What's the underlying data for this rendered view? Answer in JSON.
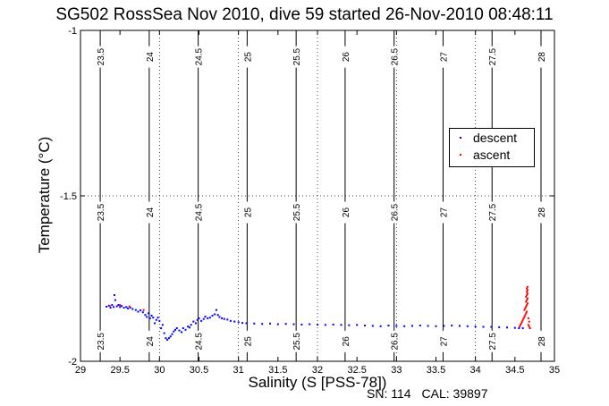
{
  "chart_data": {
    "type": "scatter",
    "title": "SG502 RossSea Nov 2010, dive 59 started 26-Nov-2010 08:48:11",
    "xlabel": "Salinity (S [PSS-78])",
    "ylabel": "Temperature (°C)",
    "xlim": [
      29,
      35
    ],
    "ylim": [
      -2,
      -1
    ],
    "xticks": [
      "29",
      "29.5",
      "30",
      "30.5",
      "31",
      "31.5",
      "32",
      "32.5",
      "33",
      "33.5",
      "34",
      "34.5",
      "35"
    ],
    "yticks": [
      "-1",
      "-1.5",
      "-2"
    ],
    "grid": "dotted",
    "legend_position": "upper-right",
    "density_contours": [
      {
        "sigma": 23.5,
        "label": "23.5",
        "x": 29.25
      },
      {
        "sigma": 24,
        "label": "24",
        "x": 29.87
      },
      {
        "sigma": 24.5,
        "label": "24.5",
        "x": 30.49
      },
      {
        "sigma": 25,
        "label": "25",
        "x": 31.11
      },
      {
        "sigma": 25.5,
        "label": "25.5",
        "x": 31.73
      },
      {
        "sigma": 26,
        "label": "26",
        "x": 32.35
      },
      {
        "sigma": 26.5,
        "label": "26.5",
        "x": 32.97
      },
      {
        "sigma": 27,
        "label": "27",
        "x": 33.59
      },
      {
        "sigma": 27.5,
        "label": "27.5",
        "x": 34.21
      },
      {
        "sigma": 28,
        "label": "28",
        "x": 34.83
      }
    ],
    "series": [
      {
        "name": "descent",
        "color": "#0000ff",
        "points": [
          [
            29.33,
            -1.835
          ],
          [
            29.36,
            -1.832
          ],
          [
            29.38,
            -1.838
          ],
          [
            29.4,
            -1.83
          ],
          [
            29.42,
            -1.836
          ],
          [
            29.43,
            -1.8
          ],
          [
            29.44,
            -1.815
          ],
          [
            29.46,
            -1.834
          ],
          [
            29.48,
            -1.83
          ],
          [
            29.5,
            -1.836
          ],
          [
            29.52,
            -1.833
          ],
          [
            29.55,
            -1.838
          ],
          [
            29.58,
            -1.836
          ],
          [
            29.6,
            -1.84
          ],
          [
            29.63,
            -1.838
          ],
          [
            29.66,
            -1.842
          ],
          [
            29.7,
            -1.845
          ],
          [
            29.73,
            -1.85
          ],
          [
            29.76,
            -1.846
          ],
          [
            29.79,
            -1.852
          ],
          [
            29.82,
            -1.86
          ],
          [
            29.84,
            -1.866
          ],
          [
            29.86,
            -1.855
          ],
          [
            29.88,
            -1.87
          ],
          [
            29.9,
            -1.862
          ],
          [
            29.92,
            -1.868
          ],
          [
            29.94,
            -1.885
          ],
          [
            29.96,
            -1.875
          ],
          [
            29.98,
            -1.868
          ],
          [
            30.0,
            -1.878
          ],
          [
            30.02,
            -1.9
          ],
          [
            30.04,
            -1.89
          ],
          [
            30.06,
            -1.915
          ],
          [
            30.08,
            -1.93
          ],
          [
            30.1,
            -1.935
          ],
          [
            30.12,
            -1.93
          ],
          [
            30.14,
            -1.925
          ],
          [
            30.16,
            -1.918
          ],
          [
            30.18,
            -1.91
          ],
          [
            30.2,
            -1.905
          ],
          [
            30.22,
            -1.9
          ],
          [
            30.25,
            -1.907
          ],
          [
            30.28,
            -1.912
          ],
          [
            30.3,
            -1.9
          ],
          [
            30.33,
            -1.905
          ],
          [
            30.36,
            -1.895
          ],
          [
            30.38,
            -1.898
          ],
          [
            30.4,
            -1.89
          ],
          [
            30.43,
            -1.88
          ],
          [
            30.46,
            -1.885
          ],
          [
            30.48,
            -1.875
          ],
          [
            30.5,
            -1.87
          ],
          [
            30.53,
            -1.878
          ],
          [
            30.56,
            -1.872
          ],
          [
            30.58,
            -1.865
          ],
          [
            30.61,
            -1.87
          ],
          [
            30.64,
            -1.868
          ],
          [
            30.67,
            -1.862
          ],
          [
            30.7,
            -1.858
          ],
          [
            30.72,
            -1.845
          ],
          [
            30.74,
            -1.86
          ],
          [
            30.76,
            -1.866
          ],
          [
            30.79,
            -1.87
          ],
          [
            30.82,
            -1.872
          ],
          [
            30.86,
            -1.874
          ],
          [
            30.9,
            -1.878
          ],
          [
            30.95,
            -1.88
          ],
          [
            31.0,
            -1.882
          ],
          [
            31.05,
            -1.884
          ],
          [
            31.1,
            -1.885
          ],
          [
            31.2,
            -1.886
          ],
          [
            31.3,
            -1.887
          ],
          [
            31.4,
            -1.886
          ],
          [
            31.5,
            -1.888
          ],
          [
            31.6,
            -1.887
          ],
          [
            31.7,
            -1.888
          ],
          [
            31.8,
            -1.889
          ],
          [
            31.9,
            -1.888
          ],
          [
            32.0,
            -1.889
          ],
          [
            32.1,
            -1.89
          ],
          [
            32.2,
            -1.889
          ],
          [
            32.3,
            -1.89
          ],
          [
            32.4,
            -1.891
          ],
          [
            32.5,
            -1.89
          ],
          [
            32.6,
            -1.892
          ],
          [
            32.7,
            -1.893
          ],
          [
            32.8,
            -1.894
          ],
          [
            32.9,
            -1.892
          ],
          [
            33.0,
            -1.893
          ],
          [
            33.1,
            -1.894
          ],
          [
            33.2,
            -1.893
          ],
          [
            33.3,
            -1.892
          ],
          [
            33.4,
            -1.893
          ],
          [
            33.5,
            -1.894
          ],
          [
            33.6,
            -1.893
          ],
          [
            33.7,
            -1.892
          ],
          [
            33.8,
            -1.893
          ],
          [
            33.9,
            -1.894
          ],
          [
            34.0,
            -1.895
          ],
          [
            34.1,
            -1.896
          ],
          [
            34.2,
            -1.896
          ],
          [
            34.3,
            -1.897
          ],
          [
            34.4,
            -1.898
          ],
          [
            34.5,
            -1.899
          ],
          [
            34.55,
            -1.9
          ],
          [
            34.6,
            -1.9
          ]
        ]
      },
      {
        "name": "ascent",
        "color": "#ff0000",
        "points": [
          [
            29.37,
            -1.832
          ],
          [
            29.5,
            -1.83
          ],
          [
            29.62,
            -1.834
          ],
          [
            29.8,
            -1.845
          ],
          [
            34.56,
            -1.895
          ],
          [
            34.57,
            -1.89
          ],
          [
            34.58,
            -1.885
          ],
          [
            34.59,
            -1.88
          ],
          [
            34.6,
            -1.875
          ],
          [
            34.61,
            -1.87
          ],
          [
            34.62,
            -1.865
          ],
          [
            34.63,
            -1.86
          ],
          [
            34.64,
            -1.855
          ],
          [
            34.65,
            -1.85
          ],
          [
            34.62,
            -1.845
          ],
          [
            34.63,
            -1.84
          ],
          [
            34.64,
            -1.835
          ],
          [
            34.65,
            -1.83
          ],
          [
            34.66,
            -1.825
          ],
          [
            34.64,
            -1.82
          ],
          [
            34.65,
            -1.815
          ],
          [
            34.66,
            -1.81
          ],
          [
            34.64,
            -1.805
          ],
          [
            34.65,
            -1.8
          ],
          [
            34.66,
            -1.795
          ],
          [
            34.65,
            -1.79
          ],
          [
            34.66,
            -1.785
          ],
          [
            34.65,
            -1.78
          ],
          [
            34.66,
            -1.775
          ],
          [
            34.67,
            -1.87
          ],
          [
            34.68,
            -1.88
          ],
          [
            34.67,
            -1.89
          ],
          [
            34.68,
            -1.895
          ],
          [
            34.69,
            -1.9
          ]
        ]
      }
    ]
  },
  "footnote": {
    "sn": "SN: 114",
    "cal": "CAL: 39897"
  },
  "colors": {
    "descent": "#0000ff",
    "ascent": "#ff0000",
    "contour": "#000000"
  }
}
